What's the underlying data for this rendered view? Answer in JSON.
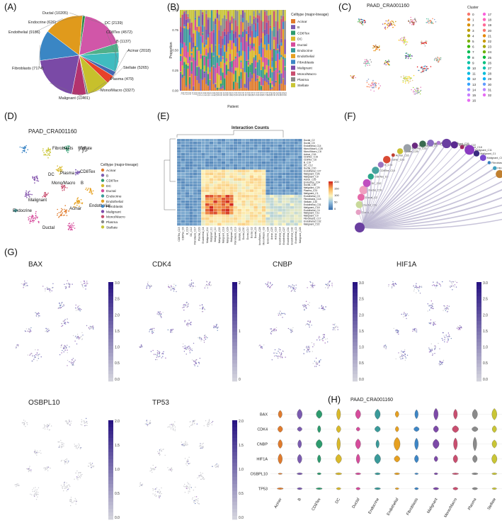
{
  "panels": {
    "A": "(A)",
    "B": "(B)",
    "C": "(C)",
    "D": "(D)",
    "E": "(E)",
    "F": "(F)",
    "G": "(G)",
    "H": "(H)"
  },
  "celltypes": [
    "Acinar",
    "B",
    "CD8Tex",
    "DC",
    "Ductal",
    "Endocrine",
    "Endothelial",
    "Fibroblasts",
    "Malignant",
    "Mono/Macro",
    "Plasma",
    "Stellate"
  ],
  "celltype_colors": [
    "#e07b2c",
    "#7b5bb0",
    "#2e9b6e",
    "#d9b92b",
    "#d64c9c",
    "#3a9a9a",
    "#e6a020",
    "#3d86c6",
    "#7d4aa8",
    "#c94e6f",
    "#8a8a8a",
    "#c9c535"
  ],
  "chart_data": [
    {
      "id": "A",
      "type": "pie",
      "labels": [
        "Ductal (10205)",
        "DC (2139)",
        "CD8Tex (4572)",
        "B (1137)",
        "Acinar (2018)",
        "Stellate (5265)",
        "Plasma (479)",
        "Mono/Macro (3327)",
        "Malignant (11401)",
        "Fibroblasts (7174)",
        "Endothelial (9186)",
        "Endocrine (626)"
      ],
      "values": [
        10205,
        2139,
        4572,
        1137,
        2018,
        5265,
        479,
        3327,
        11401,
        7174,
        9186,
        626
      ],
      "colors": [
        "#d156a8",
        "#4fb08a",
        "#3fbcc0",
        "#4467b0",
        "#e8412a",
        "#c7c02c",
        "#7f7f7f",
        "#b3336e",
        "#7a4aa6",
        "#3a86c4",
        "#e09a1c",
        "#2e8a4a"
      ]
    },
    {
      "id": "B",
      "type": "bar",
      "title": "",
      "xlabel": "Patient",
      "ylabel": "Proportion",
      "yticks": [
        "0.00",
        "0.25",
        "0.50",
        "0.75",
        "1.00"
      ],
      "legend_title": "Celltype (major-lineage)",
      "n_patients": 58
    },
    {
      "id": "C",
      "type": "scatter",
      "title": "PAAD_CRA001160",
      "legend_title": "Cluster",
      "clusters": [
        "0",
        "1",
        "2",
        "3",
        "4",
        "5",
        "6",
        "7",
        "8",
        "9",
        "10",
        "11",
        "12",
        "13",
        "14",
        "15",
        "16",
        "17",
        "18",
        "19",
        "20",
        "21",
        "22",
        "23",
        "24",
        "25",
        "26",
        "27",
        "28",
        "29",
        "30",
        "31",
        "32"
      ]
    },
    {
      "id": "D",
      "type": "scatter",
      "title": "PAAD_CRA001160",
      "legend_title": "Celltype (major-lineage)",
      "map_labels": [
        "Fibroblasts",
        "Stellate",
        "CD8Tex",
        "Plasma",
        "DC",
        "B",
        "Mono/Macro",
        "Malignant",
        "Acinar",
        "Endothelial",
        "Endocrine",
        "Ductal"
      ]
    },
    {
      "id": "E",
      "type": "heatmap",
      "title": "Interaction Counts",
      "row_labels": [
        "Ductal_C2",
        "Ductal_C5",
        "Endothelial_C14",
        "Mono/Macro_C28",
        "Mono/Macro_C8",
        "Acinar_C16",
        "CD8Tex_C15",
        "CD8Tex_C6",
        "B_C19",
        "DC_C12",
        "Ductal_C10",
        "Endothelial_C27",
        "Malignant_C26",
        "Malignant_C9",
        "Acinar_C25",
        "Endocrine_C24",
        "Ductal_C30",
        "Malignant_C29",
        "Plasma_C23",
        "Malignant_C1",
        "Endothelial_C3",
        "Fibroblasts_C13",
        "Stellate_C30",
        "Endothelial_C31",
        "Malignant_C18",
        "Endothelial_C4",
        "Malignant_C11",
        "Malignant_C0",
        "Fibroblasts_C17",
        "Endothelial_C32",
        "Malignant_C22"
      ],
      "col_labels": [
        "CD8Tex_C15",
        "CD8Tex_C6",
        "B_C19",
        "DC_C12",
        "Fibroblasts_C17",
        "Plasma_C23",
        "Endothelial_C4",
        "Malignant_C11",
        "Malignant_C1",
        "Malignant_C0",
        "Malignant_C22",
        "Malignant_C18",
        "Malignant_C29",
        "Malignant_C9",
        "Fibroblasts_C13",
        "Stellate_C20",
        "Ductal_C30",
        "Ductal_C10",
        "Ductal_C2",
        "Ductal_C5",
        "Mono/Macro_C28",
        "Mono/Macro_C8",
        "Endocrine_C24",
        "Acinar_C25",
        "Acinar_C16",
        "Endothelial_C14",
        "Endothelial_C27",
        "Endothelial_C31",
        "Endothelial_C32",
        "Endothelial_C3",
        "Malignant_C26"
      ],
      "colorbar_ticks": [
        "200",
        "150",
        "100",
        "50",
        "0"
      ]
    },
    {
      "id": "F",
      "type": "network",
      "nodes": [
        "Ductal_C5",
        "Ductal_C30",
        "Ductal_C2",
        "Ductal_C10",
        "DC_C12",
        "CD8Tex_C6",
        "CD8Tex_C15",
        "B_C19",
        "Acinar_C25",
        "Acinar_C16",
        "Stellate_C20",
        "Plasma_C23",
        "Mono/Macro_C8",
        "Mono/Macro_C28",
        "Malignant_C9",
        "Malignant_C29",
        "Malignant_C26",
        "Malignant_C22",
        "Malignant_C18",
        "Malignant_C11",
        "Malignant_C1",
        "Malignant_C0",
        "Fibroblasts_C17",
        "Fibroblasts_C13",
        "Endothelial_C4",
        "Endothelial_C32",
        "Endothelial_C31",
        "Endothelial_C3",
        "Endothelial_C27",
        "Endothelial_C24",
        "Endothelial_C14"
      ]
    }
  ],
  "umap_panels": [
    {
      "gene": "BAX",
      "ticks": [
        "3.0",
        "2.5",
        "2.0",
        "1.5",
        "1.0",
        "0.5",
        "0.0"
      ]
    },
    {
      "gene": "CDK4",
      "ticks": [
        "2",
        "1",
        "0"
      ]
    },
    {
      "gene": "CNBP",
      "ticks": [
        "3.0",
        "2.5",
        "2.0",
        "1.5",
        "1.0",
        "0.5",
        "0.0"
      ]
    },
    {
      "gene": "HIF1A",
      "ticks": [
        "3.0",
        "2.5",
        "2.0",
        "1.5",
        "1.0",
        "0.5",
        "0.0"
      ]
    },
    {
      "gene": "OSBPL10",
      "ticks": [
        "2.0",
        "1.5",
        "1.0",
        "0.5",
        "0.0"
      ]
    },
    {
      "gene": "TP53",
      "ticks": [
        "2.0",
        "1.5",
        "1.0",
        "0.5",
        "0.0"
      ]
    }
  ],
  "violin": {
    "title": "PAAD_CRA001160",
    "genes": [
      "BAX",
      "CDK4",
      "CNBP",
      "HIF1A",
      "OSBPL10",
      "TP53"
    ],
    "celltypes": [
      "Acinar",
      "B",
      "CD8Tex",
      "DC",
      "Ductal",
      "Endocrine",
      "Endothelial",
      "Fibroblasts",
      "Malignant",
      "Mono/Macro",
      "Plasma",
      "Stellate"
    ]
  }
}
